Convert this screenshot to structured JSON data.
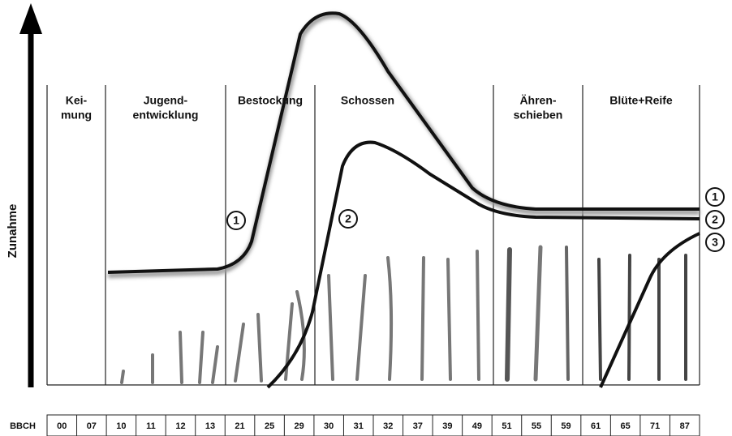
{
  "y_axis_label": "Zunahme",
  "stages": [
    {
      "lines": [
        "Kei-",
        "mung"
      ]
    },
    {
      "lines": [
        "Jugend-",
        "entwicklung"
      ]
    },
    {
      "lines": [
        "Bestockung"
      ]
    },
    {
      "lines": [
        "Schossen"
      ]
    },
    {
      "lines": [
        "Ähren-",
        "schieben"
      ]
    },
    {
      "lines": [
        "Blüte+Reife"
      ]
    }
  ],
  "curve_markers": {
    "inline": [
      "1",
      "2"
    ],
    "right": [
      "1",
      "2",
      "3"
    ]
  },
  "bbch": {
    "label": "BBCH",
    "codes": [
      "00",
      "07",
      "10",
      "11",
      "12",
      "13",
      "21",
      "25",
      "29",
      "30",
      "31",
      "32",
      "37",
      "39",
      "49",
      "51",
      "55",
      "59",
      "61",
      "65",
      "71",
      "87"
    ]
  }
}
